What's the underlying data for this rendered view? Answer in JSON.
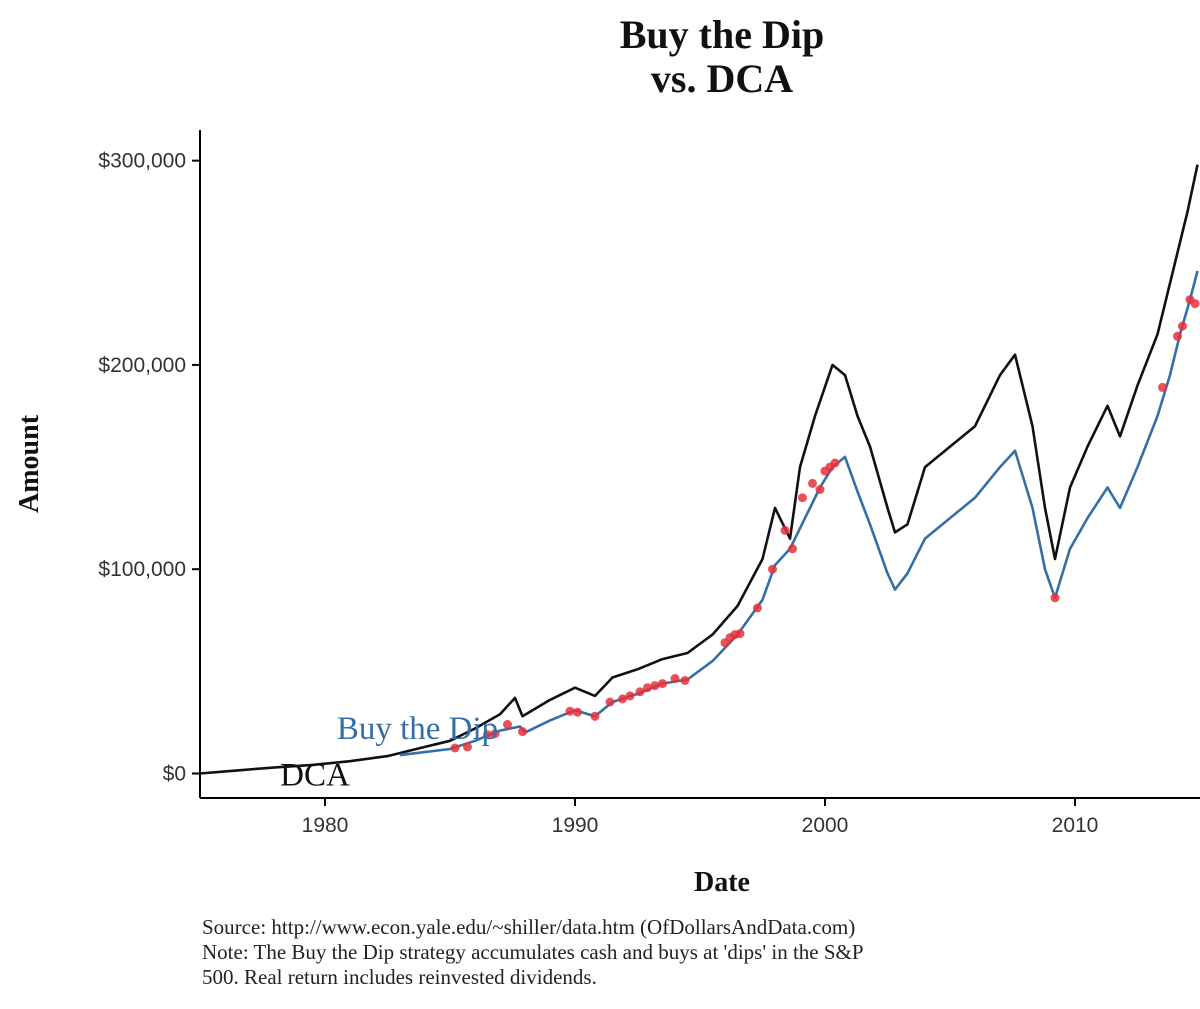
{
  "chart_data": {
    "type": "line",
    "title_lines": [
      "Buy the Dip",
      "vs. DCA"
    ],
    "xlabel": "Date",
    "ylabel": "Amount",
    "xlim": [
      1975,
      2015
    ],
    "ylim": [
      -12000,
      315000
    ],
    "x_ticks": [
      1980,
      1990,
      2000,
      2010
    ],
    "x_tick_labels": [
      "1980",
      "1990",
      "2000",
      "2010"
    ],
    "y_ticks": [
      0,
      100000,
      200000,
      300000
    ],
    "y_tick_labels": [
      "$0",
      "$100,000",
      "$200,000",
      "$300,000"
    ],
    "grid": false,
    "series": [
      {
        "name": "DCA",
        "color": "#111111",
        "points": [
          [
            1975.0,
            0
          ],
          [
            1976.5,
            1500
          ],
          [
            1978.0,
            3000
          ],
          [
            1979.5,
            4200
          ],
          [
            1981.0,
            6000
          ],
          [
            1982.5,
            8500
          ],
          [
            1984.0,
            13000
          ],
          [
            1985.0,
            16000
          ],
          [
            1986.0,
            22000
          ],
          [
            1987.0,
            29000
          ],
          [
            1987.6,
            37000
          ],
          [
            1987.9,
            28000
          ],
          [
            1989.0,
            36000
          ],
          [
            1990.0,
            42000
          ],
          [
            1990.8,
            38000
          ],
          [
            1991.5,
            47000
          ],
          [
            1992.5,
            51000
          ],
          [
            1993.5,
            56000
          ],
          [
            1994.5,
            59000
          ],
          [
            1995.5,
            68000
          ],
          [
            1996.5,
            82000
          ],
          [
            1997.5,
            105000
          ],
          [
            1998.0,
            130000
          ],
          [
            1998.6,
            115000
          ],
          [
            1999.0,
            150000
          ],
          [
            1999.6,
            175000
          ],
          [
            2000.3,
            200000
          ],
          [
            2000.8,
            195000
          ],
          [
            2001.3,
            175000
          ],
          [
            2001.8,
            160000
          ],
          [
            2002.5,
            130000
          ],
          [
            2002.8,
            118000
          ],
          [
            2003.3,
            122000
          ],
          [
            2004.0,
            150000
          ],
          [
            2005.0,
            160000
          ],
          [
            2006.0,
            170000
          ],
          [
            2007.0,
            195000
          ],
          [
            2007.6,
            205000
          ],
          [
            2008.3,
            170000
          ],
          [
            2008.8,
            130000
          ],
          [
            2009.2,
            105000
          ],
          [
            2009.8,
            140000
          ],
          [
            2010.5,
            160000
          ],
          [
            2011.3,
            180000
          ],
          [
            2011.8,
            165000
          ],
          [
            2012.5,
            190000
          ],
          [
            2013.3,
            215000
          ],
          [
            2014.0,
            250000
          ],
          [
            2014.5,
            275000
          ],
          [
            2014.9,
            298000
          ]
        ]
      },
      {
        "name": "Buy the Dip",
        "color": "#3470a6",
        "points": [
          [
            1983.0,
            9000
          ],
          [
            1985.0,
            12000
          ],
          [
            1986.0,
            16000
          ],
          [
            1987.0,
            21000
          ],
          [
            1987.8,
            23000
          ],
          [
            1988.0,
            20000
          ],
          [
            1989.0,
            26000
          ],
          [
            1990.0,
            31000
          ],
          [
            1990.8,
            28000
          ],
          [
            1991.5,
            35000
          ],
          [
            1992.5,
            39000
          ],
          [
            1993.5,
            44000
          ],
          [
            1994.5,
            46000
          ],
          [
            1995.5,
            55000
          ],
          [
            1996.5,
            68000
          ],
          [
            1997.5,
            85000
          ],
          [
            1998.0,
            102000
          ],
          [
            1998.6,
            110000
          ],
          [
            1999.2,
            125000
          ],
          [
            1999.8,
            140000
          ],
          [
            2000.3,
            150000
          ],
          [
            2000.8,
            155000
          ],
          [
            2001.3,
            138000
          ],
          [
            2001.8,
            122000
          ],
          [
            2002.5,
            98000
          ],
          [
            2002.8,
            90000
          ],
          [
            2003.3,
            98000
          ],
          [
            2004.0,
            115000
          ],
          [
            2005.0,
            125000
          ],
          [
            2006.0,
            135000
          ],
          [
            2007.0,
            150000
          ],
          [
            2007.6,
            158000
          ],
          [
            2008.3,
            130000
          ],
          [
            2008.8,
            100000
          ],
          [
            2009.2,
            86000
          ],
          [
            2009.8,
            110000
          ],
          [
            2010.5,
            125000
          ],
          [
            2011.3,
            140000
          ],
          [
            2011.8,
            130000
          ],
          [
            2012.5,
            150000
          ],
          [
            2013.3,
            175000
          ],
          [
            2013.8,
            195000
          ],
          [
            2014.2,
            215000
          ],
          [
            2014.6,
            232000
          ],
          [
            2014.9,
            246000
          ]
        ]
      }
    ],
    "dip_buys": {
      "color": "#e8303a",
      "points": [
        [
          1985.2,
          12500
        ],
        [
          1985.7,
          13000
        ],
        [
          1986.5,
          19000
        ],
        [
          1986.8,
          19500
        ],
        [
          1987.3,
          24000
        ],
        [
          1987.9,
          20500
        ],
        [
          1989.8,
          30500
        ],
        [
          1990.1,
          30000
        ],
        [
          1990.8,
          28000
        ],
        [
          1991.4,
          35000
        ],
        [
          1991.9,
          36500
        ],
        [
          1992.2,
          38000
        ],
        [
          1992.6,
          40000
        ],
        [
          1992.9,
          42000
        ],
        [
          1993.2,
          43000
        ],
        [
          1993.5,
          44000
        ],
        [
          1994.0,
          46500
        ],
        [
          1994.4,
          45500
        ],
        [
          1996.0,
          64000
        ],
        [
          1996.2,
          66500
        ],
        [
          1996.4,
          68000
        ],
        [
          1996.6,
          68500
        ],
        [
          1997.3,
          81000
        ],
        [
          1997.9,
          100000
        ],
        [
          1998.4,
          119000
        ],
        [
          1998.7,
          110000
        ],
        [
          1999.1,
          135000
        ],
        [
          1999.5,
          142000
        ],
        [
          1999.8,
          139000
        ],
        [
          2000.0,
          148000
        ],
        [
          2000.2,
          150000
        ],
        [
          2000.4,
          152000
        ],
        [
          2009.2,
          86000
        ],
        [
          2013.5,
          189000
        ],
        [
          2014.1,
          214000
        ],
        [
          2014.3,
          219000
        ],
        [
          2014.6,
          232000
        ],
        [
          2014.8,
          230000
        ]
      ]
    },
    "series_labels": [
      {
        "text": "Buy the Dip",
        "x": 1983.7,
        "y": 17000,
        "series": "Buy the Dip"
      },
      {
        "text": "DCA",
        "x": 1979.6,
        "y": -6000,
        "series": "DCA"
      }
    ]
  },
  "notes": [
    "Source:  http://www.econ.yale.edu/~shiller/data.htm (OfDollarsAndData.com)",
    "Note: The Buy the Dip strategy accumulates cash and buys at 'dips' in the S&P",
    "500. Real return includes reinvested dividends."
  ]
}
